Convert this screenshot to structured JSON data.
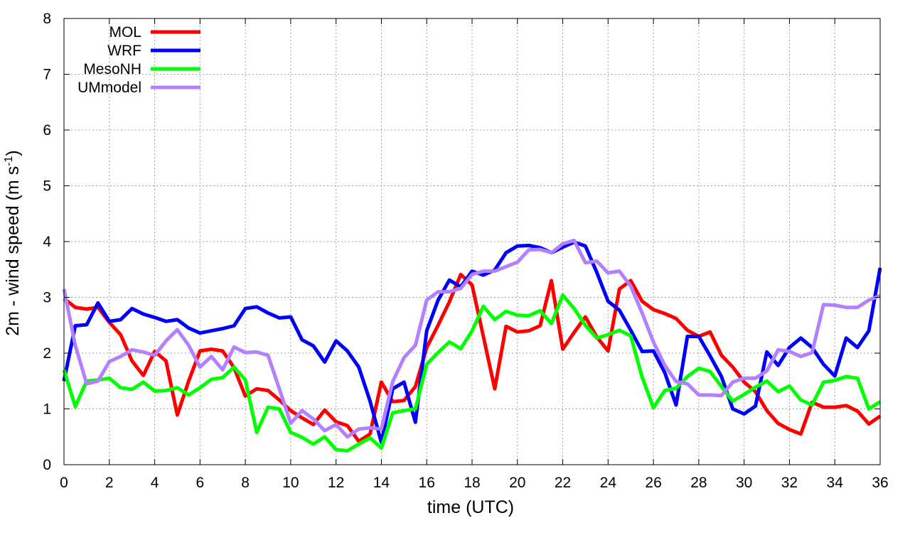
{
  "chart_data": {
    "type": "line",
    "xlabel": "time (UTC)",
    "ylabel": "2m - wind speed  (m s",
    "ylabel_sup": "-1",
    "ylabel_close": ")",
    "xlim": [
      0,
      36
    ],
    "ylim": [
      0,
      8
    ],
    "xticks": [
      "0",
      "2",
      "4",
      "6",
      "8",
      "10",
      "12",
      "14",
      "16",
      "18",
      "20",
      "22",
      "24",
      "26",
      "28",
      "30",
      "32",
      "34",
      "36"
    ],
    "yticks": [
      "0",
      "1",
      "2",
      "3",
      "4",
      "5",
      "6",
      "7",
      "8"
    ],
    "grid": true,
    "legend_position": "top-left",
    "x": [
      0,
      0.5,
      1,
      1.5,
      2,
      2.5,
      3,
      3.5,
      4,
      4.5,
      5,
      5.5,
      6,
      6.5,
      7,
      7.5,
      8,
      8.5,
      9,
      9.5,
      10,
      10.5,
      11,
      11.5,
      12,
      12.5,
      13,
      13.5,
      14,
      14.5,
      15,
      15.5,
      16,
      16.5,
      17,
      17.5,
      18,
      18.5,
      19,
      19.5,
      20,
      20.5,
      21,
      21.5,
      22,
      22.5,
      23,
      23.5,
      24,
      24.5,
      25,
      25.5,
      26,
      26.5,
      27,
      27.5,
      28,
      28.5,
      29,
      29.5,
      30,
      30.5,
      31,
      31.5,
      32,
      32.5,
      33,
      33.5,
      34,
      34.5,
      35,
      35.5,
      36
    ],
    "series": [
      {
        "name": "MOL",
        "color": "#ff0000",
        "values": [
          2.98,
          2.82,
          2.79,
          2.82,
          2.55,
          2.33,
          1.86,
          1.6,
          2.03,
          1.86,
          0.89,
          1.5,
          2.04,
          2.07,
          2.04,
          1.74,
          1.23,
          1.36,
          1.33,
          1.16,
          0.97,
          0.84,
          0.72,
          0.98,
          0.77,
          0.7,
          0.42,
          0.55,
          1.48,
          1.13,
          1.15,
          1.4,
          2.1,
          2.5,
          2.92,
          3.41,
          3.22,
          2.3,
          1.36,
          2.48,
          2.38,
          2.4,
          2.49,
          3.3,
          2.07,
          2.37,
          2.65,
          2.29,
          2.04,
          3.15,
          3.3,
          2.93,
          2.78,
          2.71,
          2.62,
          2.41,
          2.3,
          2.38,
          1.96,
          1.75,
          1.48,
          1.31,
          0.97,
          0.74,
          0.63,
          0.55,
          1.12,
          1.03,
          1.03,
          1.06,
          0.96,
          0.73,
          0.87
        ]
      },
      {
        "name": "WRF",
        "color": "#0000ff",
        "values": [
          1.5,
          2.49,
          2.51,
          2.9,
          2.57,
          2.6,
          2.8,
          2.7,
          2.64,
          2.57,
          2.6,
          2.45,
          2.36,
          2.4,
          2.44,
          2.49,
          2.8,
          2.83,
          2.72,
          2.63,
          2.65,
          2.24,
          2.13,
          1.84,
          2.22,
          2.04,
          1.75,
          1.14,
          0.4,
          1.36,
          1.48,
          0.76,
          2.4,
          2.95,
          3.31,
          3.19,
          3.47,
          3.4,
          3.49,
          3.8,
          3.92,
          3.93,
          3.89,
          3.8,
          3.9,
          3.99,
          3.92,
          3.45,
          2.93,
          2.77,
          2.41,
          2.03,
          2.04,
          1.65,
          1.07,
          2.3,
          2.3,
          1.95,
          1.58,
          1.0,
          0.91,
          1.05,
          2.02,
          1.78,
          2.1,
          2.27,
          2.1,
          1.8,
          1.59,
          2.27,
          2.1,
          2.4,
          3.53
        ]
      },
      {
        "name": "MesoNH",
        "color": "#00ff00",
        "values": [
          1.7,
          1.04,
          1.5,
          1.52,
          1.55,
          1.38,
          1.35,
          1.48,
          1.32,
          1.33,
          1.38,
          1.25,
          1.38,
          1.53,
          1.56,
          1.75,
          1.52,
          0.58,
          1.03,
          1.0,
          0.58,
          0.49,
          0.37,
          0.5,
          0.27,
          0.25,
          0.37,
          0.48,
          0.3,
          0.93,
          0.97,
          1.0,
          1.8,
          2.01,
          2.2,
          2.08,
          2.4,
          2.84,
          2.6,
          2.75,
          2.68,
          2.67,
          2.76,
          2.53,
          3.04,
          2.8,
          2.5,
          2.27,
          2.33,
          2.41,
          2.31,
          1.57,
          1.02,
          1.33,
          1.37,
          1.58,
          1.73,
          1.67,
          1.4,
          1.14,
          1.26,
          1.39,
          1.5,
          1.31,
          1.41,
          1.16,
          1.07,
          1.48,
          1.51,
          1.58,
          1.55,
          1.0,
          1.13
        ]
      },
      {
        "name": "UMmodel",
        "color": "#b380ff",
        "values": [
          3.15,
          2.14,
          1.45,
          1.5,
          1.85,
          1.94,
          2.06,
          2.02,
          1.96,
          2.22,
          2.42,
          2.14,
          1.75,
          1.94,
          1.7,
          2.11,
          2.01,
          2.02,
          1.96,
          1.36,
          0.74,
          0.97,
          0.82,
          0.61,
          0.72,
          0.5,
          0.64,
          0.66,
          0.64,
          1.49,
          1.92,
          2.14,
          2.95,
          3.1,
          3.1,
          3.16,
          3.41,
          3.47,
          3.47,
          3.55,
          3.63,
          3.85,
          3.86,
          3.8,
          3.96,
          4.02,
          3.62,
          3.65,
          3.44,
          3.47,
          3.2,
          2.72,
          2.2,
          1.78,
          1.49,
          1.45,
          1.25,
          1.25,
          1.24,
          1.48,
          1.55,
          1.55,
          1.68,
          2.06,
          2.03,
          1.94,
          2.01,
          2.87,
          2.86,
          2.82,
          2.82,
          2.95,
          3.03
        ]
      }
    ]
  }
}
